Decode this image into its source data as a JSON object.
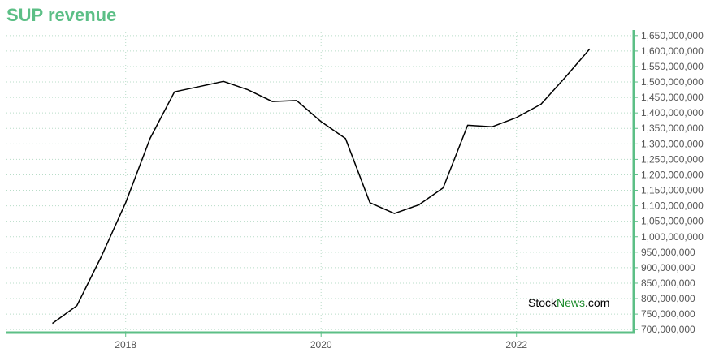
{
  "title": "SUP revenue",
  "watermark": {
    "part1": "Stock",
    "part2": "News",
    "part3": ".com"
  },
  "colors": {
    "title": "#5cbf86",
    "axis": "#5cbf86",
    "grid": "#b8dcc8",
    "line": "#000000",
    "brand": "#1a8a2a"
  },
  "chart_data": {
    "type": "line",
    "title": "SUP revenue",
    "xlabel": "",
    "ylabel": "",
    "x_ticks": [
      2018,
      2020,
      2022
    ],
    "xlim": [
      2016.78,
      2023.2
    ],
    "ylim": [
      690000000,
      1660000000
    ],
    "y_ticks": [
      700000000,
      750000000,
      800000000,
      850000000,
      900000000,
      950000000,
      1000000000,
      1050000000,
      1100000000,
      1150000000,
      1200000000,
      1250000000,
      1300000000,
      1350000000,
      1400000000,
      1450000000,
      1500000000,
      1550000000,
      1600000000,
      1650000000
    ],
    "y_tick_labels": [
      "700,000,000",
      "750,000,000",
      "800,000,000",
      "850,000,000",
      "900,000,000",
      "950,000,000",
      "1,000,000,000",
      "1,050,000,000",
      "1,100,000,000",
      "1,150,000,000",
      "1,200,000,000",
      "1,250,000,000",
      "1,300,000,000",
      "1,350,000,000",
      "1,400,000,000",
      "1,450,000,000",
      "1,500,000,000",
      "1,550,000,000",
      "1,600,000,000",
      "1,650,000,000"
    ],
    "grid": true,
    "y_axis_position": "right",
    "series": [
      {
        "x": [
          2017.25,
          2017.5,
          2017.75,
          2018.0,
          2018.25,
          2018.5,
          2018.75,
          2019.0,
          2019.25,
          2019.5,
          2019.75,
          2020.0,
          2020.25,
          2020.5,
          2020.75,
          2021.0,
          2021.25,
          2021.5,
          2021.75,
          2022.0,
          2022.25,
          2022.5,
          2022.75
        ],
        "values": [
          720000000,
          777000000,
          935000000,
          1110000000,
          1318000000,
          1468000000,
          1485000000,
          1502000000,
          1475000000,
          1437000000,
          1440000000,
          1372000000,
          1317000000,
          1110000000,
          1075000000,
          1103000000,
          1158000000,
          1360000000,
          1355000000,
          1385000000,
          1428000000,
          1515000000,
          1607000000
        ]
      }
    ]
  }
}
